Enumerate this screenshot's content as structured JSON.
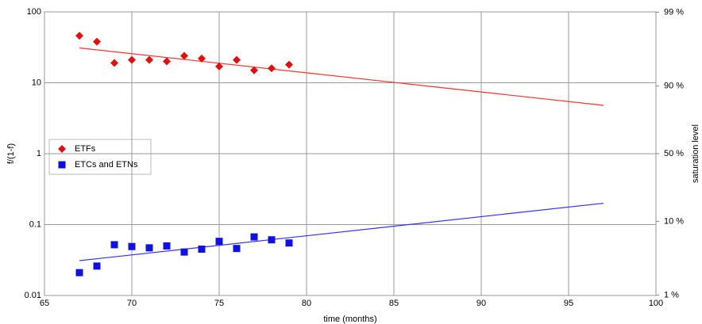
{
  "chart_data": {
    "type": "scatter",
    "x_label": "time (months)",
    "y_label": "f/(1-f)",
    "y2_label": "saturation level",
    "xlim": [
      65,
      100
    ],
    "xticks": [
      65,
      70,
      75,
      80,
      85,
      90,
      95,
      100
    ],
    "ylim": [
      0.01,
      100
    ],
    "yticks": [
      0.01,
      0.1,
      1,
      10,
      100
    ],
    "yscale": "log",
    "y2scale": "logit-percent",
    "y2ticks": [
      {
        "value": 1,
        "label": "1 %"
      },
      {
        "value": 10,
        "label": "10 %"
      },
      {
        "value": 50,
        "label": "50 %"
      },
      {
        "value": 90,
        "label": "90 %"
      },
      {
        "value": 99,
        "label": "99 %"
      }
    ],
    "grid": true,
    "legend": "left",
    "series": [
      {
        "name": "ETFs",
        "color": "#e01010",
        "marker": "diamond",
        "x": [
          67,
          68,
          69,
          70,
          71,
          72,
          73,
          74,
          75,
          76,
          77,
          78,
          79
        ],
        "values": [
          46,
          38,
          19,
          21,
          21,
          20,
          24,
          22,
          17,
          21,
          15,
          16,
          18
        ]
      },
      {
        "name": "ETCs and ETNs",
        "color": "#1010e0",
        "marker": "square",
        "x": [
          67,
          68,
          69,
          70,
          71,
          72,
          73,
          74,
          75,
          76,
          77,
          78,
          79
        ],
        "values": [
          0.021,
          0.026,
          0.052,
          0.049,
          0.047,
          0.05,
          0.041,
          0.045,
          0.058,
          0.046,
          0.067,
          0.061,
          0.055
        ]
      }
    ],
    "fits": [
      {
        "color": "#ff3030",
        "x": [
          67,
          97
        ],
        "values": [
          31,
          4.8
        ]
      },
      {
        "color": "#3030ff",
        "x": [
          67,
          97
        ],
        "values": [
          0.031,
          0.2
        ]
      }
    ]
  }
}
